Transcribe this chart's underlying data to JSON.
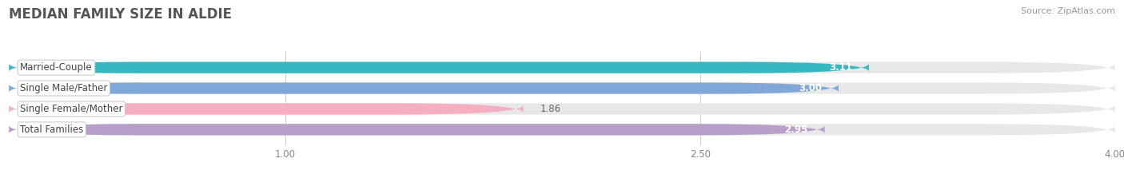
{
  "title": "MEDIAN FAMILY SIZE IN ALDIE",
  "source": "Source: ZipAtlas.com",
  "categories": [
    "Married-Couple",
    "Single Male/Father",
    "Single Female/Mother",
    "Total Families"
  ],
  "values": [
    3.11,
    3.0,
    1.86,
    2.95
  ],
  "bar_colors": [
    "#35b8c0",
    "#7fa8d8",
    "#f5afc0",
    "#b89ec8"
  ],
  "bar_bg_color": "#e8e8e8",
  "x_min": 0.0,
  "x_max": 4.0,
  "x_ticks": [
    1.0,
    2.5,
    4.0
  ],
  "x_tick_labels": [
    "1.00",
    "2.50",
    "4.00"
  ],
  "label_fontsize": 8.5,
  "value_fontsize": 8.5,
  "title_fontsize": 12,
  "source_fontsize": 8,
  "bar_height": 0.55,
  "background_color": "#ffffff",
  "grid_color": "#cccccc",
  "title_color": "#555555",
  "source_color": "#999999",
  "label_color": "#444444",
  "value_color_inside": "#ffffff",
  "value_color_outside": "#666666"
}
